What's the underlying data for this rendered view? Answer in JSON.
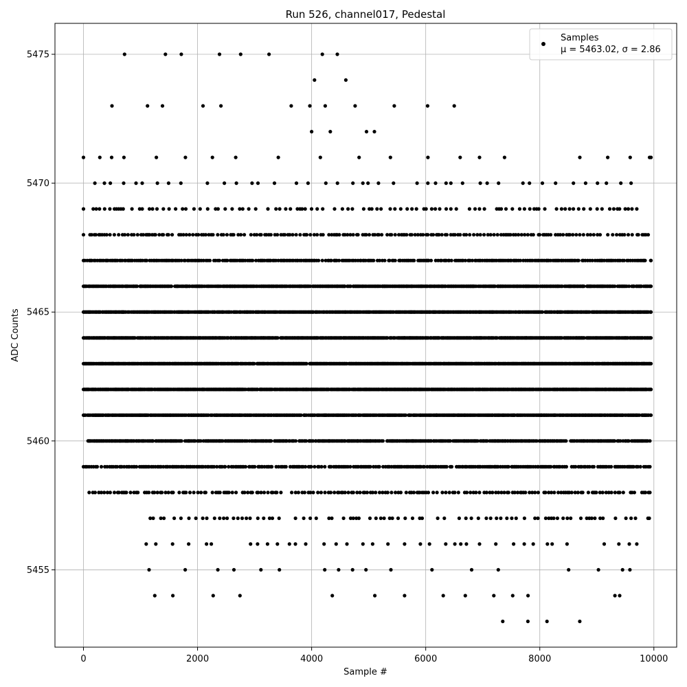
{
  "chart_data": {
    "type": "scatter",
    "title": "Run 526, channel017, Pedestal",
    "xlabel": "Sample #",
    "ylabel": "ADC Counts",
    "xlim": [
      -500,
      10400
    ],
    "ylim": [
      5452,
      5476.2
    ],
    "xticks": [
      0,
      2000,
      4000,
      6000,
      8000,
      10000
    ],
    "xtick_labels": [
      "0",
      "2000",
      "4000",
      "6000",
      "8000",
      "10000"
    ],
    "yticks": [
      5455,
      5460,
      5465,
      5470,
      5475
    ],
    "ytick_labels": [
      "5455",
      "5460",
      "5465",
      "5470",
      "5475"
    ],
    "grid": true,
    "legend": {
      "position": "upper right",
      "entries": [
        {
          "name": "Samples",
          "stats": "μ = 5463.02, σ = 2.86"
        }
      ]
    },
    "series": [
      {
        "name": "Samples",
        "color": "#000000",
        "marker": "circle",
        "n_samples": 10000,
        "mean": 5463.02,
        "std": 2.86,
        "x_range": [
          0,
          9950
        ],
        "levels": [
          {
            "y": 5453,
            "x_start": 7350,
            "x_end": 8700
          },
          {
            "y": 5454,
            "x_start": 1250,
            "x_end": 9400
          },
          {
            "y": 5455,
            "x_start": 1150,
            "x_end": 9580
          },
          {
            "y": 5456,
            "x_start": 1100,
            "x_end": 9700
          },
          {
            "y": 5457,
            "x_start": 1170,
            "x_end": 9920
          },
          {
            "y": 5458,
            "x_start": 100,
            "x_end": 9930
          },
          {
            "y": 5459,
            "x_start": 0,
            "x_end": 9930
          },
          {
            "y": 5460,
            "x_start": 80,
            "x_end": 9930
          },
          {
            "y": 5461,
            "x_start": 0,
            "x_end": 9950
          },
          {
            "y": 5462,
            "x_start": 0,
            "x_end": 9950
          },
          {
            "y": 5463,
            "x_start": 0,
            "x_end": 9950
          },
          {
            "y": 5464,
            "x_start": 0,
            "x_end": 9950
          },
          {
            "y": 5465,
            "x_start": 0,
            "x_end": 9950
          },
          {
            "y": 5466,
            "x_start": 0,
            "x_end": 9950
          },
          {
            "y": 5467,
            "x_start": 0,
            "x_end": 9950
          },
          {
            "y": 5468,
            "x_start": 0,
            "x_end": 9900
          },
          {
            "y": 5469,
            "x_start": 0,
            "x_end": 9700
          },
          {
            "y": 5470,
            "x_start": 200,
            "x_end": 9600
          },
          {
            "y": 5471,
            "x_start": 0,
            "x_end": 9950
          },
          {
            "y": 5472,
            "x_start": 4000,
            "x_end": 5100
          },
          {
            "y": 5473,
            "x_start": 500,
            "x_end": 6500
          },
          {
            "y": 5474,
            "x_start": 4050,
            "x_end": 4600
          },
          {
            "y": 5475,
            "x_start": 720,
            "x_end": 4450
          }
        ]
      }
    ]
  }
}
